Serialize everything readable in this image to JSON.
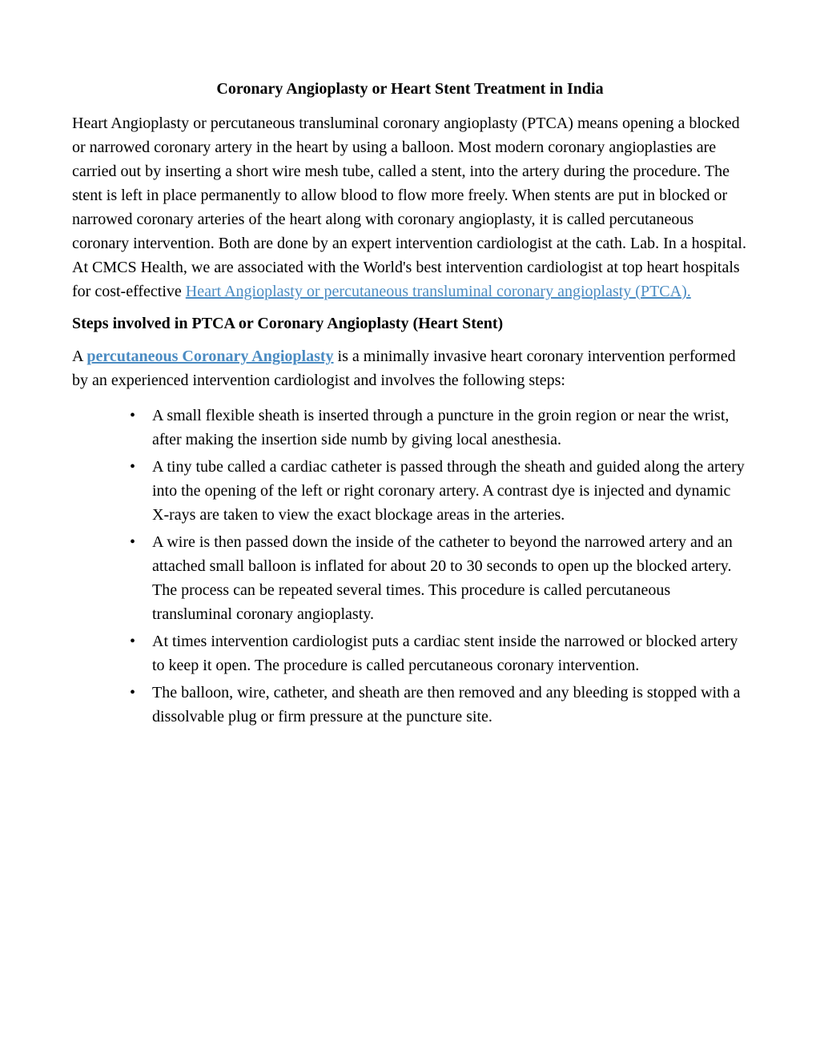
{
  "title": "Coronary Angioplasty or Heart Stent Treatment in India",
  "para1_pre": "Heart Angioplasty or percutaneous transluminal coronary angioplasty (PTCA) means opening a blocked or narrowed coronary artery in the heart by using a balloon. Most modern coronary angioplasties are carried out by inserting a short wire mesh tube, called a stent, into the artery during the procedure. The stent is left in place permanently to allow blood to flow more freely. When stents are put in blocked or narrowed coronary arteries of the heart along with coronary angioplasty, it is called percutaneous coronary intervention. Both are done by an expert intervention cardiologist at the cath. Lab. In a hospital. At CMCS Health, we are associated with the World's best intervention cardiologist at top heart hospitals for cost-effective ",
  "para1_link": "Heart Angioplasty or percutaneous transluminal coronary angioplasty (PTCA).",
  "subheading": "Steps involved in PTCA or Coronary Angioplasty (Heart Stent)",
  "para2_pre": "A ",
  "para2_link": "percutaneous Coronary Angioplasty",
  "para2_post": " is a minimally invasive heart coronary intervention performed by an experienced intervention cardiologist and involves the following steps:",
  "bullets": [
    "A small flexible sheath is inserted through a puncture in the groin region or near the wrist, after making the insertion side numb by giving local anesthesia.",
    "A tiny tube called a cardiac catheter is passed through the sheath and guided along the artery into the opening of the left or right coronary artery. A contrast dye is injected and dynamic X-rays are taken to view the exact blockage areas in the arteries.",
    "A wire is then passed down the inside of the catheter to beyond the narrowed artery and an attached small balloon is inflated for about 20 to 30 seconds to open up the blocked artery. The process can be repeated several times. This procedure is called percutaneous transluminal coronary angioplasty.",
    "At times intervention cardiologist puts a cardiac stent inside the narrowed or blocked artery to keep it open. The procedure is called percutaneous coronary intervention.",
    "The balloon, wire, catheter, and sheath are then removed and any bleeding is stopped with a dissolvable plug or firm pressure at the puncture site."
  ],
  "colors": {
    "link": "#4a8bc2",
    "text": "#000000",
    "background": "#ffffff"
  },
  "typography": {
    "font_family": "Times New Roman",
    "body_fontsize": 20,
    "title_fontsize": 20,
    "line_height": 1.5
  }
}
